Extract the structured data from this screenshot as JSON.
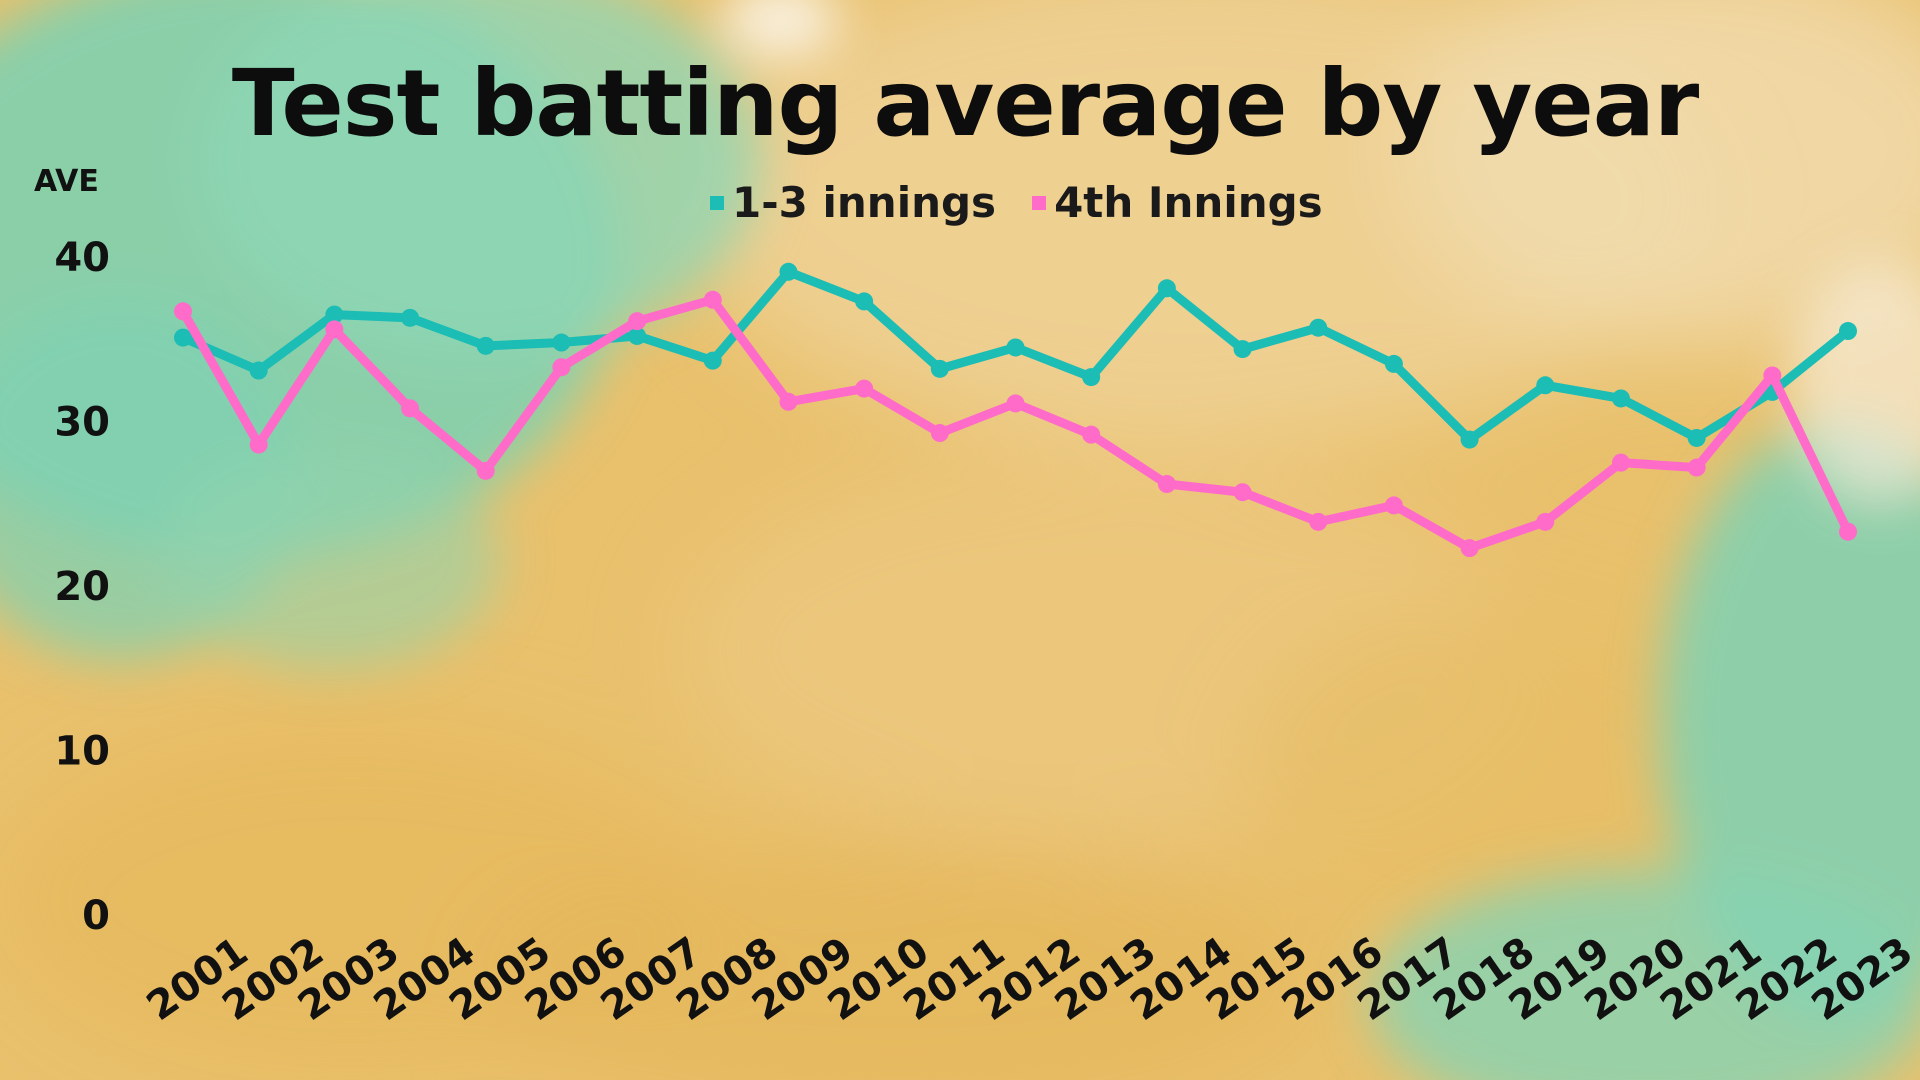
{
  "chart_data": {
    "type": "line",
    "title": "Test batting average by year",
    "xlabel": "",
    "ylabel": "AVE",
    "ylim": [
      0,
      40
    ],
    "yticks": [
      0,
      10,
      20,
      30,
      40
    ],
    "grid": false,
    "legend_position": "top-center",
    "categories": [
      "2001",
      "2002",
      "2003",
      "2004",
      "2005",
      "2006",
      "2007",
      "2008",
      "2009",
      "2010",
      "2011",
      "2012",
      "2013",
      "2014",
      "2015",
      "2016",
      "2017",
      "2018",
      "2019",
      "2020",
      "2021",
      "2022",
      "2023"
    ],
    "series": [
      {
        "name": "1-3 innings",
        "color": "#1bbdb5",
        "values": [
          35.1,
          33.1,
          36.5,
          36.3,
          34.6,
          34.8,
          35.2,
          33.7,
          39.1,
          37.3,
          33.2,
          34.5,
          32.7,
          38.1,
          34.4,
          35.7,
          33.5,
          28.9,
          32.2,
          31.4,
          29.0,
          31.8,
          35.5
        ]
      },
      {
        "name": "4th Innings",
        "color": "#ff6bc8",
        "values": [
          36.7,
          28.6,
          35.6,
          30.8,
          27.0,
          33.3,
          36.1,
          37.4,
          31.2,
          32.0,
          29.3,
          31.1,
          29.2,
          26.2,
          25.7,
          23.9,
          24.9,
          22.3,
          23.9,
          27.5,
          27.2,
          32.8,
          23.3
        ]
      }
    ]
  }
}
